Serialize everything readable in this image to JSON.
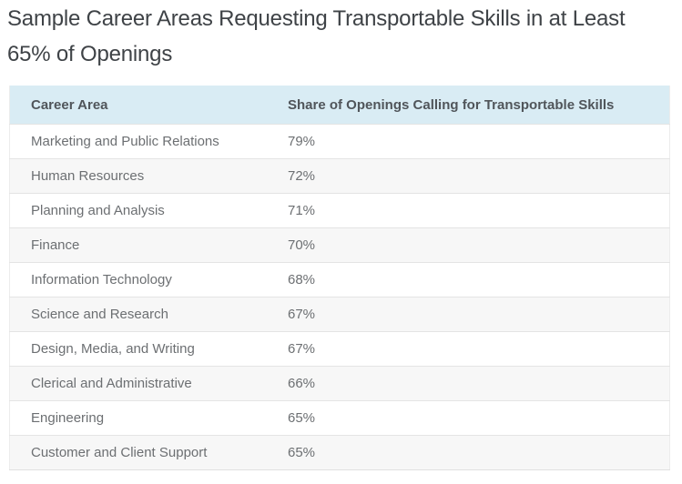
{
  "page": {
    "title": "Sample Career Areas Requesting Transportable Skills in at Least 65% of Openings"
  },
  "table": {
    "columns": {
      "area": "Career Area",
      "share": "Share of Openings Calling for Transportable Skills"
    },
    "rows": [
      {
        "area": "Marketing and Public Relations",
        "share": "79%"
      },
      {
        "area": "Human Resources",
        "share": "72%"
      },
      {
        "area": "Planning and Analysis",
        "share": "71%"
      },
      {
        "area": "Finance",
        "share": "70%"
      },
      {
        "area": "Information Technology",
        "share": "68%"
      },
      {
        "area": "Science and Research",
        "share": "67%"
      },
      {
        "area": "Design, Media, and Writing",
        "share": "67%"
      },
      {
        "area": "Clerical and Administrative",
        "share": "66%"
      },
      {
        "area": "Engineering",
        "share": "65%"
      },
      {
        "area": "Customer and Client Support",
        "share": "65%"
      }
    ]
  },
  "colors": {
    "header_background": "#d9ecf4",
    "header_text": "#50555a",
    "row_text": "#6c6f72",
    "row_alt_background": "#f7f7f7",
    "row_border": "#e4e4e4",
    "title_text": "#3f4347"
  },
  "chart_data": {
    "type": "table",
    "title": "Sample Career Areas Requesting Transportable Skills in at Least 65% of Openings",
    "columns": [
      "Career Area",
      "Share of Openings Calling for Transportable Skills"
    ],
    "categories": [
      "Marketing and Public Relations",
      "Human Resources",
      "Planning and Analysis",
      "Finance",
      "Information Technology",
      "Science and Research",
      "Design, Media, and Writing",
      "Clerical and Administrative",
      "Engineering",
      "Customer and Client Support"
    ],
    "values": [
      79,
      72,
      71,
      70,
      68,
      67,
      67,
      66,
      65,
      65
    ],
    "unit": "%",
    "layout": "two-column table, striped rows, light-blue header band"
  }
}
